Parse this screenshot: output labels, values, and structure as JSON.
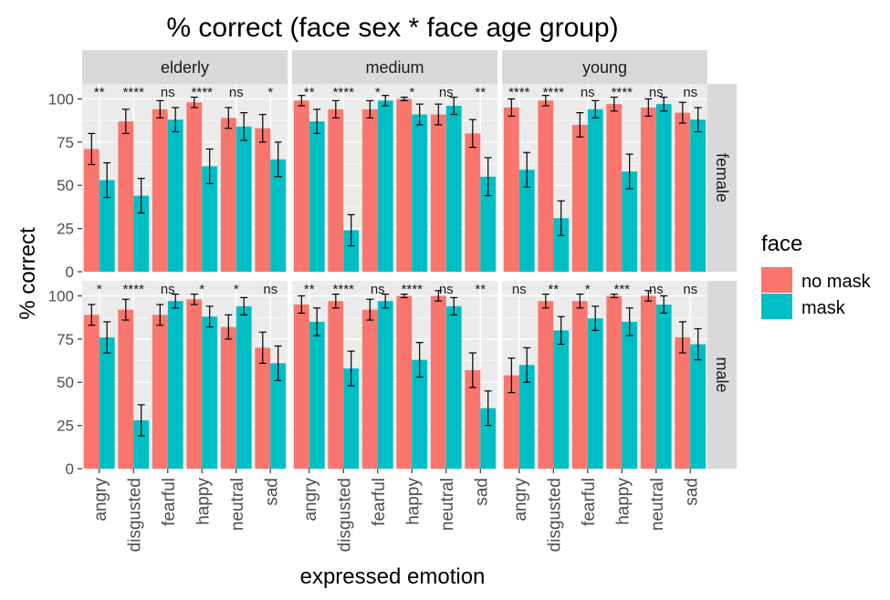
{
  "colors": {
    "no_mask": "#F8766D",
    "mask": "#00BFC4",
    "panel_bg": "#EBEBEB",
    "strip_bg": "#D9D9D9",
    "grid": "#FFFFFF",
    "text": "#1A1A1A",
    "axis_text": "#4D4D4D"
  },
  "chart_data": {
    "type": "bar",
    "title": "% correct (face sex * face age group)",
    "xlabel": "expressed emotion",
    "ylabel": "% correct",
    "ylim": [
      0,
      105
    ],
    "yticks": [
      0,
      25,
      50,
      75,
      100
    ],
    "categories": [
      "angry",
      "disgusted",
      "fearful",
      "happy",
      "neutral",
      "sad"
    ],
    "legend": {
      "title": "face",
      "position": "right",
      "entries": [
        {
          "key": "no_mask",
          "label": "no mask"
        },
        {
          "key": "mask",
          "label": "mask"
        }
      ]
    },
    "column_facets": [
      "elderly",
      "medium",
      "young"
    ],
    "row_facets": [
      "female",
      "male"
    ],
    "panels": [
      {
        "age": "elderly",
        "sex": "female",
        "no_mask": [
          71,
          87,
          94,
          98,
          89,
          83
        ],
        "no_mask_err": [
          9,
          7,
          5,
          3,
          6,
          8
        ],
        "mask": [
          53,
          44,
          88,
          61,
          84,
          65
        ],
        "mask_err": [
          10,
          10,
          7,
          10,
          8,
          10
        ],
        "sig": [
          "**",
          "****",
          "ns",
          "****",
          "ns",
          "*"
        ]
      },
      {
        "age": "medium",
        "sex": "female",
        "no_mask": [
          99,
          94,
          94,
          100,
          91,
          80
        ],
        "no_mask_err": [
          3,
          5,
          5,
          1,
          6,
          8
        ],
        "mask": [
          87,
          24,
          99,
          91,
          96,
          55
        ],
        "mask_err": [
          7,
          9,
          3,
          6,
          5,
          11
        ],
        "sig": [
          "**",
          "****",
          "*",
          "*",
          "ns",
          "**"
        ]
      },
      {
        "age": "young",
        "sex": "female",
        "no_mask": [
          95,
          99,
          85,
          97,
          95,
          92
        ],
        "no_mask_err": [
          5,
          3,
          7,
          4,
          5,
          6
        ],
        "mask": [
          59,
          31,
          94,
          58,
          97,
          88
        ],
        "mask_err": [
          10,
          10,
          5,
          10,
          4,
          7
        ],
        "sig": [
          "****",
          "****",
          "ns",
          "****",
          "ns",
          "ns"
        ]
      },
      {
        "age": "elderly",
        "sex": "male",
        "no_mask": [
          89,
          92,
          89,
          98,
          82,
          70
        ],
        "no_mask_err": [
          6,
          6,
          6,
          3,
          7,
          9
        ],
        "mask": [
          76,
          28,
          97,
          88,
          94,
          61
        ],
        "mask_err": [
          9,
          9,
          4,
          6,
          5,
          10
        ],
        "sig": [
          "*",
          "****",
          "ns",
          "*",
          "*",
          "ns"
        ]
      },
      {
        "age": "medium",
        "sex": "male",
        "no_mask": [
          95,
          97,
          92,
          100,
          100,
          57
        ],
        "no_mask_err": [
          5,
          4,
          6,
          1,
          3,
          10
        ],
        "mask": [
          85,
          58,
          97,
          63,
          94,
          35
        ],
        "mask_err": [
          8,
          10,
          4,
          10,
          5,
          10
        ],
        "sig": [
          "**",
          "****",
          "ns",
          "****",
          "ns",
          "**"
        ]
      },
      {
        "age": "young",
        "sex": "male",
        "no_mask": [
          54,
          97,
          97,
          100,
          100,
          76
        ],
        "no_mask_err": [
          10,
          4,
          4,
          1,
          3,
          9
        ],
        "mask": [
          60,
          80,
          87,
          85,
          95,
          72
        ],
        "mask_err": [
          10,
          8,
          7,
          8,
          5,
          9
        ],
        "sig": [
          "ns",
          "**",
          "*",
          "***",
          "ns",
          "ns"
        ]
      }
    ]
  }
}
